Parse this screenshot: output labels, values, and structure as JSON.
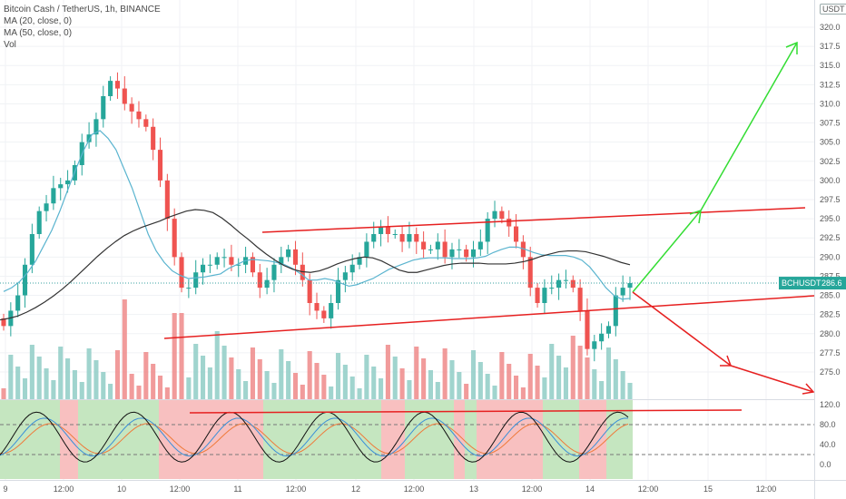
{
  "legend": {
    "title": "Bitcoin Cash / TetherUS, 1h, BINANCE",
    "ma20": "MA (20, close, 0)",
    "ma50": "MA (50, close, 0)",
    "vol": "Vol"
  },
  "currency": "USDT",
  "last_price": {
    "symbol": "BCHUSDT",
    "value": "286.6"
  },
  "colors": {
    "up": "#8fcdc5",
    "down": "#ef8a8a",
    "up_strong": "#26a69a",
    "down_strong": "#ef5350",
    "ma20": "#5ab4cf",
    "ma50": "#333333",
    "channel": "#e62020",
    "green_arrow": "#33dd33",
    "red_arrow": "#e62020",
    "osc_green_bg": "#c5e6c0",
    "osc_red_bg": "#f8c0c0"
  },
  "chart_data": [
    {
      "type": "candlestick",
      "title": "Bitcoin Cash / TetherUS, 1h, BINANCE",
      "y_ticks": [
        "320.0",
        "317.5",
        "315.0",
        "312.5",
        "310.0",
        "307.5",
        "305.0",
        "302.5",
        "300.0",
        "297.5",
        "295.0",
        "292.5",
        "290.0",
        "287.5",
        "285.0",
        "282.5",
        "280.0",
        "277.5",
        "275.0"
      ],
      "x_ticks": [
        "9",
        "12:00",
        "10",
        "12:00",
        "11",
        "12:00",
        "12",
        "12:00",
        "13",
        "12:00",
        "14",
        "12:00",
        "15",
        "12:00"
      ],
      "ylim": [
        274.5,
        321.5
      ],
      "series": [
        {
          "name": "MA (20, close, 0)",
          "values": [
            285.5,
            286.0,
            286.8,
            288.0,
            289.5,
            291.5,
            293.5,
            296.0,
            298.8,
            301.5,
            304.0,
            306.0,
            306.5,
            305.5,
            304.0,
            301.5,
            299.0,
            296.0,
            293.0,
            290.8,
            289.3,
            288.2,
            287.6,
            287.2,
            287.3,
            287.4,
            287.6,
            287.8,
            288.5,
            289.0,
            289.5,
            289.7,
            289.6,
            289.5,
            289.3,
            289.0,
            288.5,
            287.8,
            287.0,
            287.0,
            287.2,
            287.0,
            286.6,
            286.2,
            286.4,
            286.8,
            287.2,
            287.8,
            288.4,
            288.8,
            289.2,
            289.6,
            289.8,
            289.9,
            289.9,
            289.9,
            289.8,
            289.8,
            289.8,
            289.9,
            290.1,
            290.6,
            291.0,
            291.3,
            291.3,
            291.0,
            290.6,
            290.3,
            290.2,
            290.2,
            290.2,
            290.0,
            289.6,
            288.7,
            287.4,
            286.0,
            285.0,
            284.5,
            284.6
          ]
        },
        {
          "name": "MA (50, close, 0)",
          "values": [
            281.8,
            282.0,
            282.3,
            282.8,
            283.4,
            284.1,
            284.9,
            285.8,
            286.8,
            287.9,
            289.0,
            290.1,
            291.1,
            292.0,
            292.8,
            293.4,
            293.9,
            294.3,
            294.7,
            295.2,
            295.6,
            296.0,
            296.2,
            296.1,
            295.8,
            295.1,
            294.2,
            293.2,
            292.3,
            291.3,
            290.4,
            289.6,
            288.9,
            288.4,
            288.1,
            288.0,
            288.2,
            288.6,
            289.1,
            289.5,
            289.8,
            290.0,
            289.9,
            289.5,
            288.9,
            288.3,
            288.0,
            288.0,
            288.3,
            288.6,
            288.9,
            289.1,
            289.2,
            289.2,
            289.2,
            289.1,
            289.1,
            289.1,
            289.2,
            289.4,
            289.7,
            290.1,
            290.4,
            290.7,
            290.8,
            290.8,
            290.7,
            290.4,
            290.1,
            289.7,
            289.3,
            289.0
          ]
        }
      ],
      "annotations": [
        "BCHUSDT 286.6"
      ]
    },
    {
      "type": "bar",
      "name": "Vol"
    },
    {
      "type": "line",
      "name": "oscillator",
      "y_ticks": [
        "120.0",
        "80.0",
        "40.0",
        "0.0"
      ],
      "ylim": [
        -15,
        130
      ]
    }
  ]
}
